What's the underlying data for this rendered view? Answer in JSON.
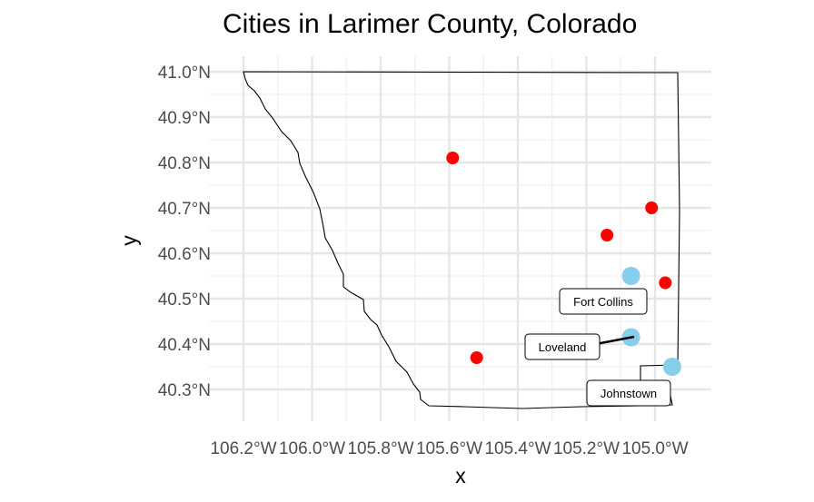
{
  "title": "Cities in Larimer County, Colorado",
  "xlabel": "x",
  "ylabel": "y",
  "chart_data": {
    "type": "scatter",
    "title": "Cities in Larimer County, Colorado",
    "xlabel": "x",
    "ylabel": "y",
    "xlim": [
      -106.2,
      -104.95
    ],
    "ylim": [
      40.27,
      41.0
    ],
    "x_ticks": [
      "106.2°W",
      "106.0°W",
      "105.8°W",
      "105.6°W",
      "105.4°W",
      "105.2°W",
      "105.0°W"
    ],
    "y_ticks": [
      "40.3°N",
      "40.4°N",
      "40.5°N",
      "40.6°N",
      "40.7°N",
      "40.8°N",
      "40.9°N",
      "41.0°N"
    ],
    "grid": true,
    "series": [
      {
        "color": "#ff0000",
        "points": [
          {
            "x": -105.59,
            "y": 40.81
          },
          {
            "x": -105.01,
            "y": 40.7
          },
          {
            "x": -105.14,
            "y": 40.64
          },
          {
            "x": -104.97,
            "y": 40.535
          },
          {
            "x": -105.52,
            "y": 40.37
          }
        ]
      },
      {
        "color": "#87ceeb",
        "points": [
          {
            "x": -105.07,
            "y": 40.55
          },
          {
            "x": -105.07,
            "y": 40.415
          },
          {
            "x": -104.95,
            "y": 40.35
          }
        ]
      }
    ],
    "labels": [
      {
        "text": "Fort Collins"
      },
      {
        "text": "Loveland"
      },
      {
        "text": "Johnstown"
      }
    ],
    "county_outline_color": "#000000"
  }
}
